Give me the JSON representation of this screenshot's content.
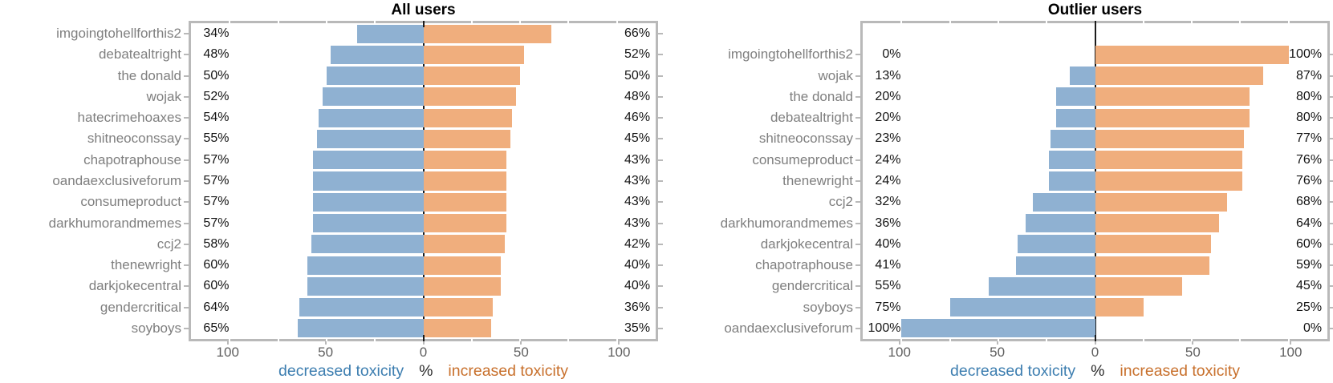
{
  "chart_data": [
    {
      "type": "bar",
      "variant": "horizontal-diverging",
      "title": "All users",
      "slots": 15,
      "categories": [
        "imgoingtohellforthis2",
        "debatealtright",
        "the donald",
        "wojak",
        "hatecrimehoaxes",
        "shitneoconssay",
        "chapotraphouse",
        "oandaexclusiveforum",
        "consumeproduct",
        "darkhumorandmemes",
        "ccj2",
        "thenewright",
        "darkjokecentral",
        "gendercritical",
        "soyboys"
      ],
      "series": [
        {
          "name": "decreased toxicity",
          "unit": "%",
          "direction": "left",
          "color": "#8fb1d2",
          "values": [
            34,
            48,
            50,
            52,
            54,
            55,
            57,
            57,
            57,
            57,
            58,
            60,
            60,
            64,
            65
          ]
        },
        {
          "name": "increased toxicity",
          "unit": "%",
          "direction": "right",
          "color": "#f0ae7d",
          "values": [
            66,
            52,
            50,
            48,
            46,
            45,
            43,
            43,
            43,
            43,
            42,
            40,
            40,
            36,
            35
          ]
        }
      ],
      "xlabel": "%",
      "xlim": [
        -120,
        120
      ],
      "x_major_ticks": [
        -100,
        -50,
        0,
        50,
        100
      ],
      "x_minor_tick_step": 25,
      "grid": false,
      "legend_position": "below-axis-caption"
    },
    {
      "type": "bar",
      "variant": "horizontal-diverging",
      "title": "Outlier users",
      "slots": 15,
      "categories": [
        "imgoingtohellforthis2",
        "wojak",
        "the donald",
        "debatealtright",
        "shitneoconssay",
        "consumeproduct",
        "thenewright",
        "ccj2",
        "darkhumorandmemes",
        "darkjokecentral",
        "chapotraphouse",
        "gendercritical",
        "soyboys",
        "oandaexclusiveforum"
      ],
      "series": [
        {
          "name": "decreased toxicity",
          "unit": "%",
          "direction": "left",
          "color": "#8fb1d2",
          "values": [
            0,
            13,
            20,
            20,
            23,
            24,
            24,
            32,
            36,
            40,
            41,
            55,
            75,
            100
          ]
        },
        {
          "name": "increased toxicity",
          "unit": "%",
          "direction": "right",
          "color": "#f0ae7d",
          "values": [
            100,
            87,
            80,
            80,
            77,
            76,
            76,
            68,
            64,
            60,
            59,
            45,
            25,
            0
          ]
        }
      ],
      "xlabel": "%",
      "xlim": [
        -120,
        120
      ],
      "x_major_ticks": [
        -100,
        -50,
        0,
        50,
        100
      ],
      "x_minor_tick_step": 25,
      "grid": false,
      "legend_position": "below-axis-caption"
    }
  ],
  "axis": {
    "tick_labels": [
      "100",
      "50",
      "0",
      "50",
      "100"
    ],
    "caption_left": "decreased toxicity",
    "caption_mid": "%",
    "caption_right": "increased toxicity"
  },
  "colors": {
    "bar_decreased": "#8fb1d2",
    "bar_increased": "#f0ae7d",
    "caption_decreased": "#3d7eb0",
    "caption_increased": "#c8702c",
    "panel_border": "#b9b9b9",
    "zero_line": "#1c1c1c",
    "y_label_text": "#7f7f7f",
    "tick_label_text": "#5f5f5f",
    "value_label_text": "#141414"
  }
}
